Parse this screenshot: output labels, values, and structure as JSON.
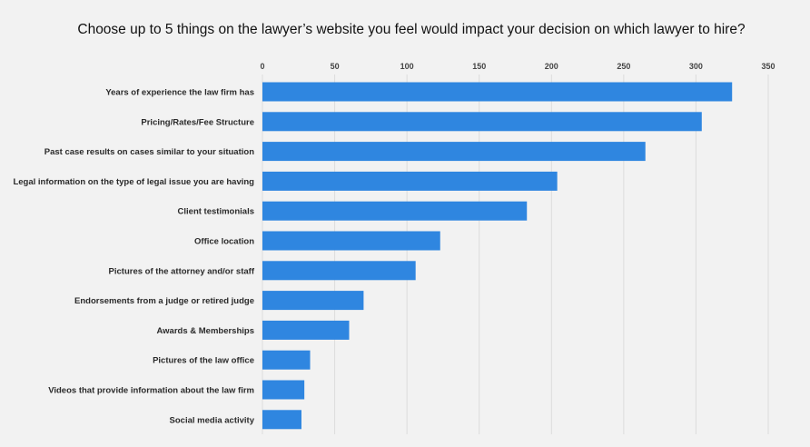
{
  "chart_data": {
    "type": "bar",
    "orientation": "horizontal",
    "title": "Choose up to 5 things on the lawyer’s website you feel would impact your decision on which lawyer to hire?",
    "xlabel": "",
    "ylabel": "",
    "xlim": [
      0,
      350
    ],
    "xticks": [
      0,
      50,
      100,
      150,
      200,
      250,
      300,
      350
    ],
    "grid": true,
    "legend": "none",
    "bar_color": "#2f86e0",
    "categories": [
      "Years of experience the law firm has",
      "Pricing/Rates/Fee Structure",
      "Past case results on cases similar to your situation",
      "Legal information on the type of legal issue you are having",
      "Client testimonials",
      "Office location",
      "Pictures of the attorney and/or staff",
      "Endorsements from a judge or retired judge",
      "Awards & Memberships",
      "Pictures of the law office",
      "Videos that provide information about the law firm",
      "Social media activity"
    ],
    "values": [
      325,
      304,
      265,
      204,
      183,
      123,
      106,
      70,
      60,
      33,
      29,
      27
    ]
  }
}
